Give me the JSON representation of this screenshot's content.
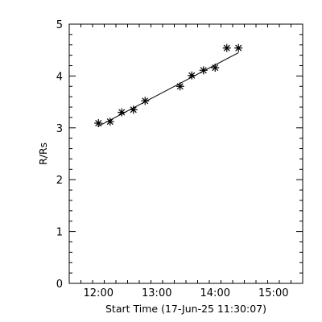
{
  "chart_data": {
    "type": "scatter",
    "title": "",
    "xlabel": "Start Time (17-Jun-25 11:30:07)",
    "ylabel": "R/Rs",
    "xlim": [
      "11:30",
      "15:30"
    ],
    "ylim": [
      0,
      5
    ],
    "x_ticks": [
      "12:00",
      "13:00",
      "14:00",
      "15:00"
    ],
    "y_ticks": [
      "0",
      "1",
      "2",
      "3",
      "4",
      "5"
    ],
    "grid": false,
    "legend": "none",
    "marker": "asterisk",
    "color": "#000000",
    "series": [
      {
        "x": [
          "12:00",
          "12:12",
          "12:24",
          "12:36",
          "12:48",
          "13:24",
          "13:36",
          "13:48",
          "14:00",
          "14:12",
          "14:24"
        ],
        "y": [
          3.09,
          3.12,
          3.3,
          3.35,
          3.52,
          3.8,
          4.01,
          4.11,
          4.16,
          4.54,
          4.54
        ]
      }
    ],
    "fit_line": {
      "x": [
        "12:00",
        "14:24"
      ],
      "y": [
        3.03,
        4.45
      ]
    }
  }
}
